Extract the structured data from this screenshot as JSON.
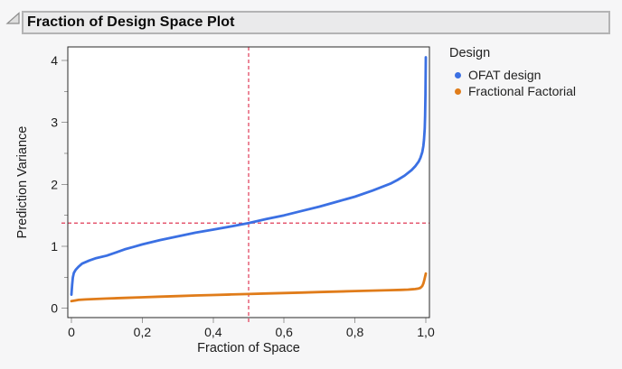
{
  "header": {
    "title": "Fraction of Design Space Plot"
  },
  "legend": {
    "title": "Design",
    "items": [
      {
        "label": "OFAT design"
      },
      {
        "label": "Fractional Factorial"
      }
    ]
  },
  "chart_data": {
    "type": "line",
    "title": "Fraction of Design Space Plot",
    "xlabel": "Fraction of Space",
    "ylabel": "Prediction Variance",
    "x_axis": {
      "min": 0,
      "max": 1,
      "ticks": [
        0,
        0.2,
        0.4,
        0.6,
        0.8,
        1.0
      ],
      "tick_labels": [
        "0",
        "0,2",
        "0,4",
        "0,6",
        "0,8",
        "1,0"
      ]
    },
    "y_axis": {
      "min": 0,
      "max": 4,
      "ticks": [
        0,
        1,
        2,
        3,
        4
      ],
      "tick_labels": [
        "0",
        "1",
        "2",
        "3",
        "4"
      ],
      "minor_step": 0.5
    },
    "grid": "off",
    "legend_position": "right-top",
    "reference_lines": {
      "x": 0.5,
      "y": 1.375,
      "style": "dashed",
      "color": "#e03a56"
    },
    "frame_color": "#2a2a2a",
    "tick_color": "#9a9a9a",
    "series": [
      {
        "name": "OFAT design",
        "color": "#3b70e3",
        "points": [
          [
            0.0,
            0.22
          ],
          [
            0.002,
            0.38
          ],
          [
            0.004,
            0.5
          ],
          [
            0.007,
            0.57
          ],
          [
            0.012,
            0.62
          ],
          [
            0.02,
            0.67
          ],
          [
            0.03,
            0.72
          ],
          [
            0.05,
            0.77
          ],
          [
            0.07,
            0.81
          ],
          [
            0.1,
            0.85
          ],
          [
            0.125,
            0.9
          ],
          [
            0.15,
            0.95
          ],
          [
            0.175,
            0.99
          ],
          [
            0.2,
            1.03
          ],
          [
            0.25,
            1.1
          ],
          [
            0.3,
            1.16
          ],
          [
            0.35,
            1.22
          ],
          [
            0.4,
            1.27
          ],
          [
            0.45,
            1.32
          ],
          [
            0.5,
            1.375
          ],
          [
            0.55,
            1.44
          ],
          [
            0.6,
            1.5
          ],
          [
            0.65,
            1.57
          ],
          [
            0.7,
            1.64
          ],
          [
            0.75,
            1.72
          ],
          [
            0.8,
            1.8
          ],
          [
            0.85,
            1.9
          ],
          [
            0.9,
            2.01
          ],
          [
            0.92,
            2.07
          ],
          [
            0.94,
            2.14
          ],
          [
            0.96,
            2.23
          ],
          [
            0.97,
            2.29
          ],
          [
            0.98,
            2.37
          ],
          [
            0.985,
            2.43
          ],
          [
            0.99,
            2.52
          ],
          [
            0.993,
            2.62
          ],
          [
            0.995,
            2.72
          ],
          [
            0.997,
            2.9
          ],
          [
            0.998,
            3.1
          ],
          [
            0.999,
            3.45
          ],
          [
            0.9995,
            3.75
          ],
          [
            1.0,
            4.05
          ]
        ]
      },
      {
        "name": "Fractional Factorial",
        "color": "#e07c1a",
        "points": [
          [
            0.0,
            0.115
          ],
          [
            0.01,
            0.125
          ],
          [
            0.02,
            0.135
          ],
          [
            0.04,
            0.143
          ],
          [
            0.07,
            0.15
          ],
          [
            0.1,
            0.157
          ],
          [
            0.15,
            0.168
          ],
          [
            0.2,
            0.178
          ],
          [
            0.25,
            0.188
          ],
          [
            0.3,
            0.197
          ],
          [
            0.35,
            0.206
          ],
          [
            0.4,
            0.214
          ],
          [
            0.45,
            0.222
          ],
          [
            0.5,
            0.23
          ],
          [
            0.55,
            0.238
          ],
          [
            0.6,
            0.246
          ],
          [
            0.65,
            0.254
          ],
          [
            0.7,
            0.262
          ],
          [
            0.75,
            0.27
          ],
          [
            0.8,
            0.278
          ],
          [
            0.85,
            0.285
          ],
          [
            0.9,
            0.292
          ],
          [
            0.93,
            0.297
          ],
          [
            0.95,
            0.302
          ],
          [
            0.96,
            0.305
          ],
          [
            0.97,
            0.31
          ],
          [
            0.98,
            0.32
          ],
          [
            0.985,
            0.33
          ],
          [
            0.99,
            0.36
          ],
          [
            0.993,
            0.4
          ],
          [
            0.996,
            0.46
          ],
          [
            1.0,
            0.56
          ]
        ]
      }
    ]
  }
}
